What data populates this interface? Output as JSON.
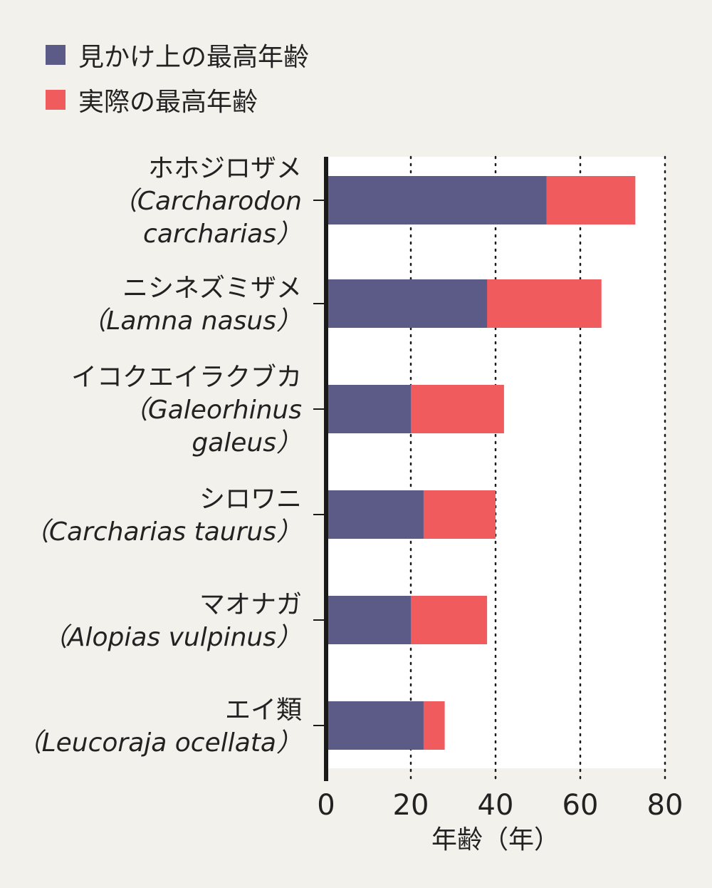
{
  "chart_data": {
    "type": "bar",
    "orientation": "horizontal",
    "stacked": false,
    "overlay": true,
    "legend_position": "top-left",
    "grid": "vertical-dotted",
    "xlabel": "年齢（年）",
    "xlim": [
      0,
      80
    ],
    "xticks": [
      0,
      20,
      40,
      60,
      80
    ],
    "xtick_labels": [
      "0",
      "20",
      "40",
      "60",
      "80"
    ],
    "colors": {
      "apparent": "#5c5a86",
      "actual": "#f05b5e",
      "plot_bg": "#ffffff",
      "page_bg": "#f2f1ec"
    },
    "legend": [
      {
        "label": "見かけ上の最高年齢",
        "color": "#5c5a86"
      },
      {
        "label": "実際の最高年齢",
        "color": "#f05b5e"
      }
    ],
    "categories": [
      {
        "jp": "ホホジロザメ",
        "sci_lines": [
          "（Carcharodon",
          "carcharias）"
        ]
      },
      {
        "jp": "ニシネズミザメ",
        "sci_lines": [
          "（Lamna nasus）"
        ]
      },
      {
        "jp": "イコクエイラクブカ",
        "sci_lines": [
          "（Galeorhinus",
          "galeus）"
        ]
      },
      {
        "jp": "シロワニ",
        "sci_lines": [
          "（Carcharias taurus）"
        ]
      },
      {
        "jp": "マオナガ",
        "sci_lines": [
          "（Alopias vulpinus）"
        ]
      },
      {
        "jp": "エイ類",
        "sci_lines": [
          "（Leucoraja ocellata）"
        ]
      }
    ],
    "series": [
      {
        "name": "見かけ上の最高年齢",
        "values": [
          52,
          38,
          20,
          23,
          20,
          23
        ]
      },
      {
        "name": "実際の最高年齢",
        "values": [
          73,
          65,
          42,
          40,
          38,
          28
        ]
      }
    ]
  }
}
